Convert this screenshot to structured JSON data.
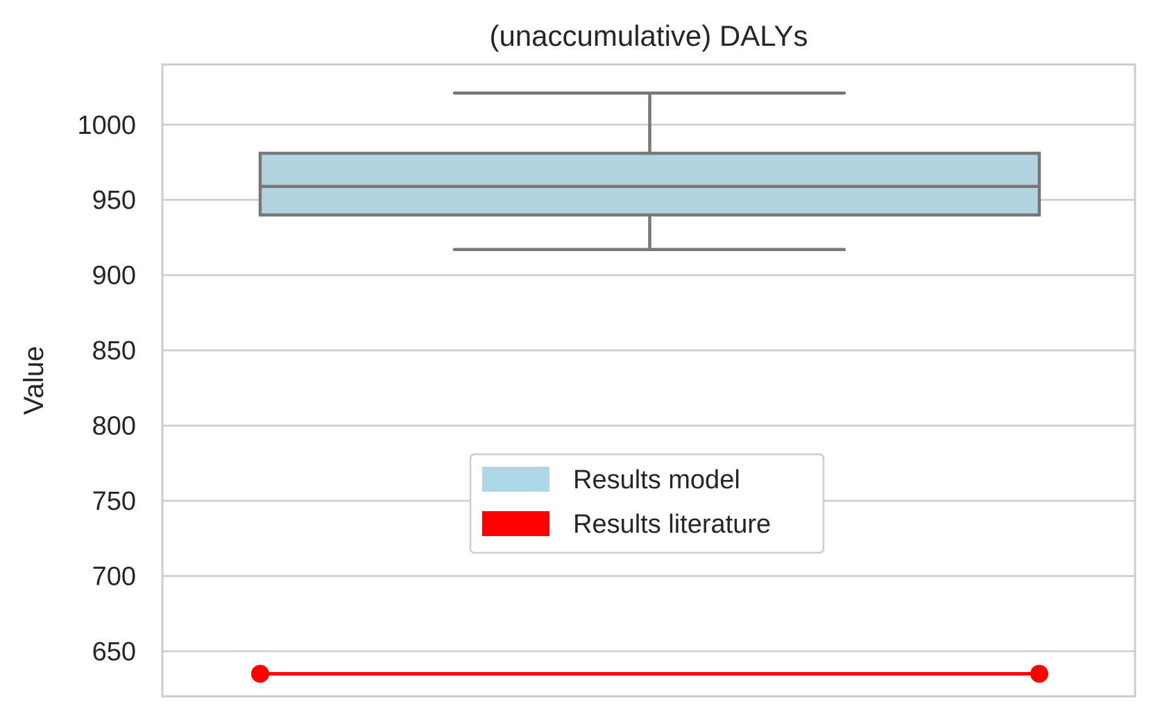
{
  "chart_data": {
    "type": "box",
    "title": "(unaccumulative) DALYs",
    "xlabel": "",
    "ylabel": "Value",
    "ylim": [
      620,
      1040
    ],
    "yticks": [
      650,
      700,
      750,
      800,
      850,
      900,
      950,
      1000
    ],
    "grid": "horizontal",
    "legend": {
      "placement": "center",
      "entries": [
        {
          "label": "Results model",
          "color": "#add8e6"
        },
        {
          "label": "Results literature",
          "color": "#ff0000"
        }
      ]
    },
    "box": {
      "name": "Results model",
      "whisker_low": 917,
      "q1": 940,
      "median": 959,
      "q3": 981,
      "whisker_high": 1021,
      "fill": "#b3d4df",
      "edge": "#777777"
    },
    "reference_line": {
      "name": "Results literature",
      "value": 635,
      "color": "#ff0000"
    }
  }
}
